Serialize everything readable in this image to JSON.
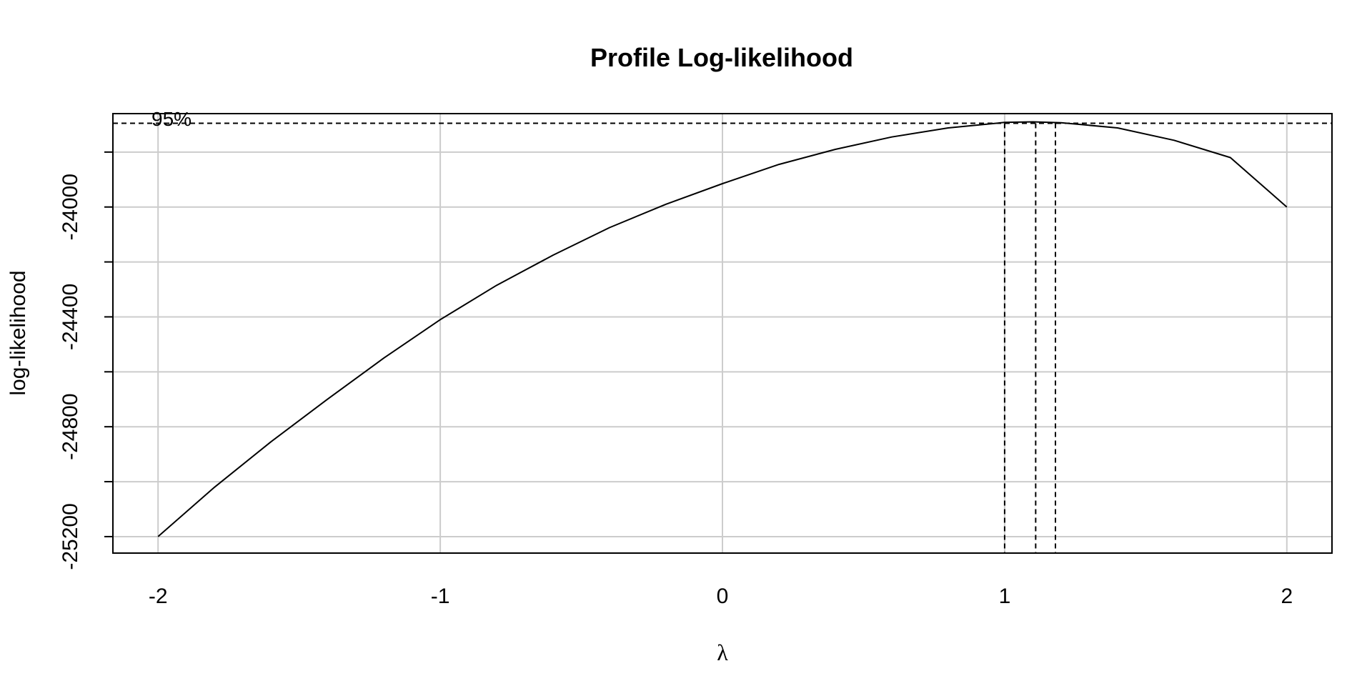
{
  "chart_data": {
    "type": "line",
    "title": "Profile Log-likelihood",
    "xlabel": "λ",
    "ylabel": "log-likelihood",
    "xlim": [
      -2.16,
      2.16
    ],
    "ylim": [
      -25260,
      -23660
    ],
    "x_ticks": [
      -2,
      -1,
      0,
      1,
      2
    ],
    "x_tick_labels": [
      "-2",
      "-1",
      "0",
      "1",
      "2"
    ],
    "y_ticks": [
      -25200,
      -24800,
      -24400,
      -24000
    ],
    "y_tick_labels": [
      "-25200",
      "-24800",
      "-24400",
      "-24000"
    ],
    "grid": true,
    "grid_color": "#cccccc",
    "line_color": "#000000",
    "x_grid": [
      -2,
      -1,
      0,
      1,
      2
    ],
    "y_grid": [
      -25200,
      -25000,
      -24800,
      -24600,
      -24400,
      -24200,
      -24000,
      -23800
    ],
    "series": [
      {
        "x": [
          -2.0,
          -1.8,
          -1.6,
          -1.4,
          -1.2,
          -1.0,
          -0.8,
          -0.6,
          -0.4,
          -0.2,
          0.0,
          0.2,
          0.4,
          0.6,
          0.8,
          1.0,
          1.1,
          1.2,
          1.4,
          1.6,
          1.8,
          2.0
        ],
        "y": [
          -25200,
          -25020,
          -24855,
          -24700,
          -24550,
          -24410,
          -24285,
          -24175,
          -24075,
          -23990,
          -23915,
          -23845,
          -23790,
          -23745,
          -23712,
          -23692,
          -23690,
          -23693,
          -23712,
          -23757,
          -23820,
          -24000
        ]
      }
    ],
    "ci_threshold": -23695,
    "ci_label": "95%",
    "lambda_hat": 1.11,
    "ci_lower": 1.0,
    "ci_upper": 1.18
  }
}
